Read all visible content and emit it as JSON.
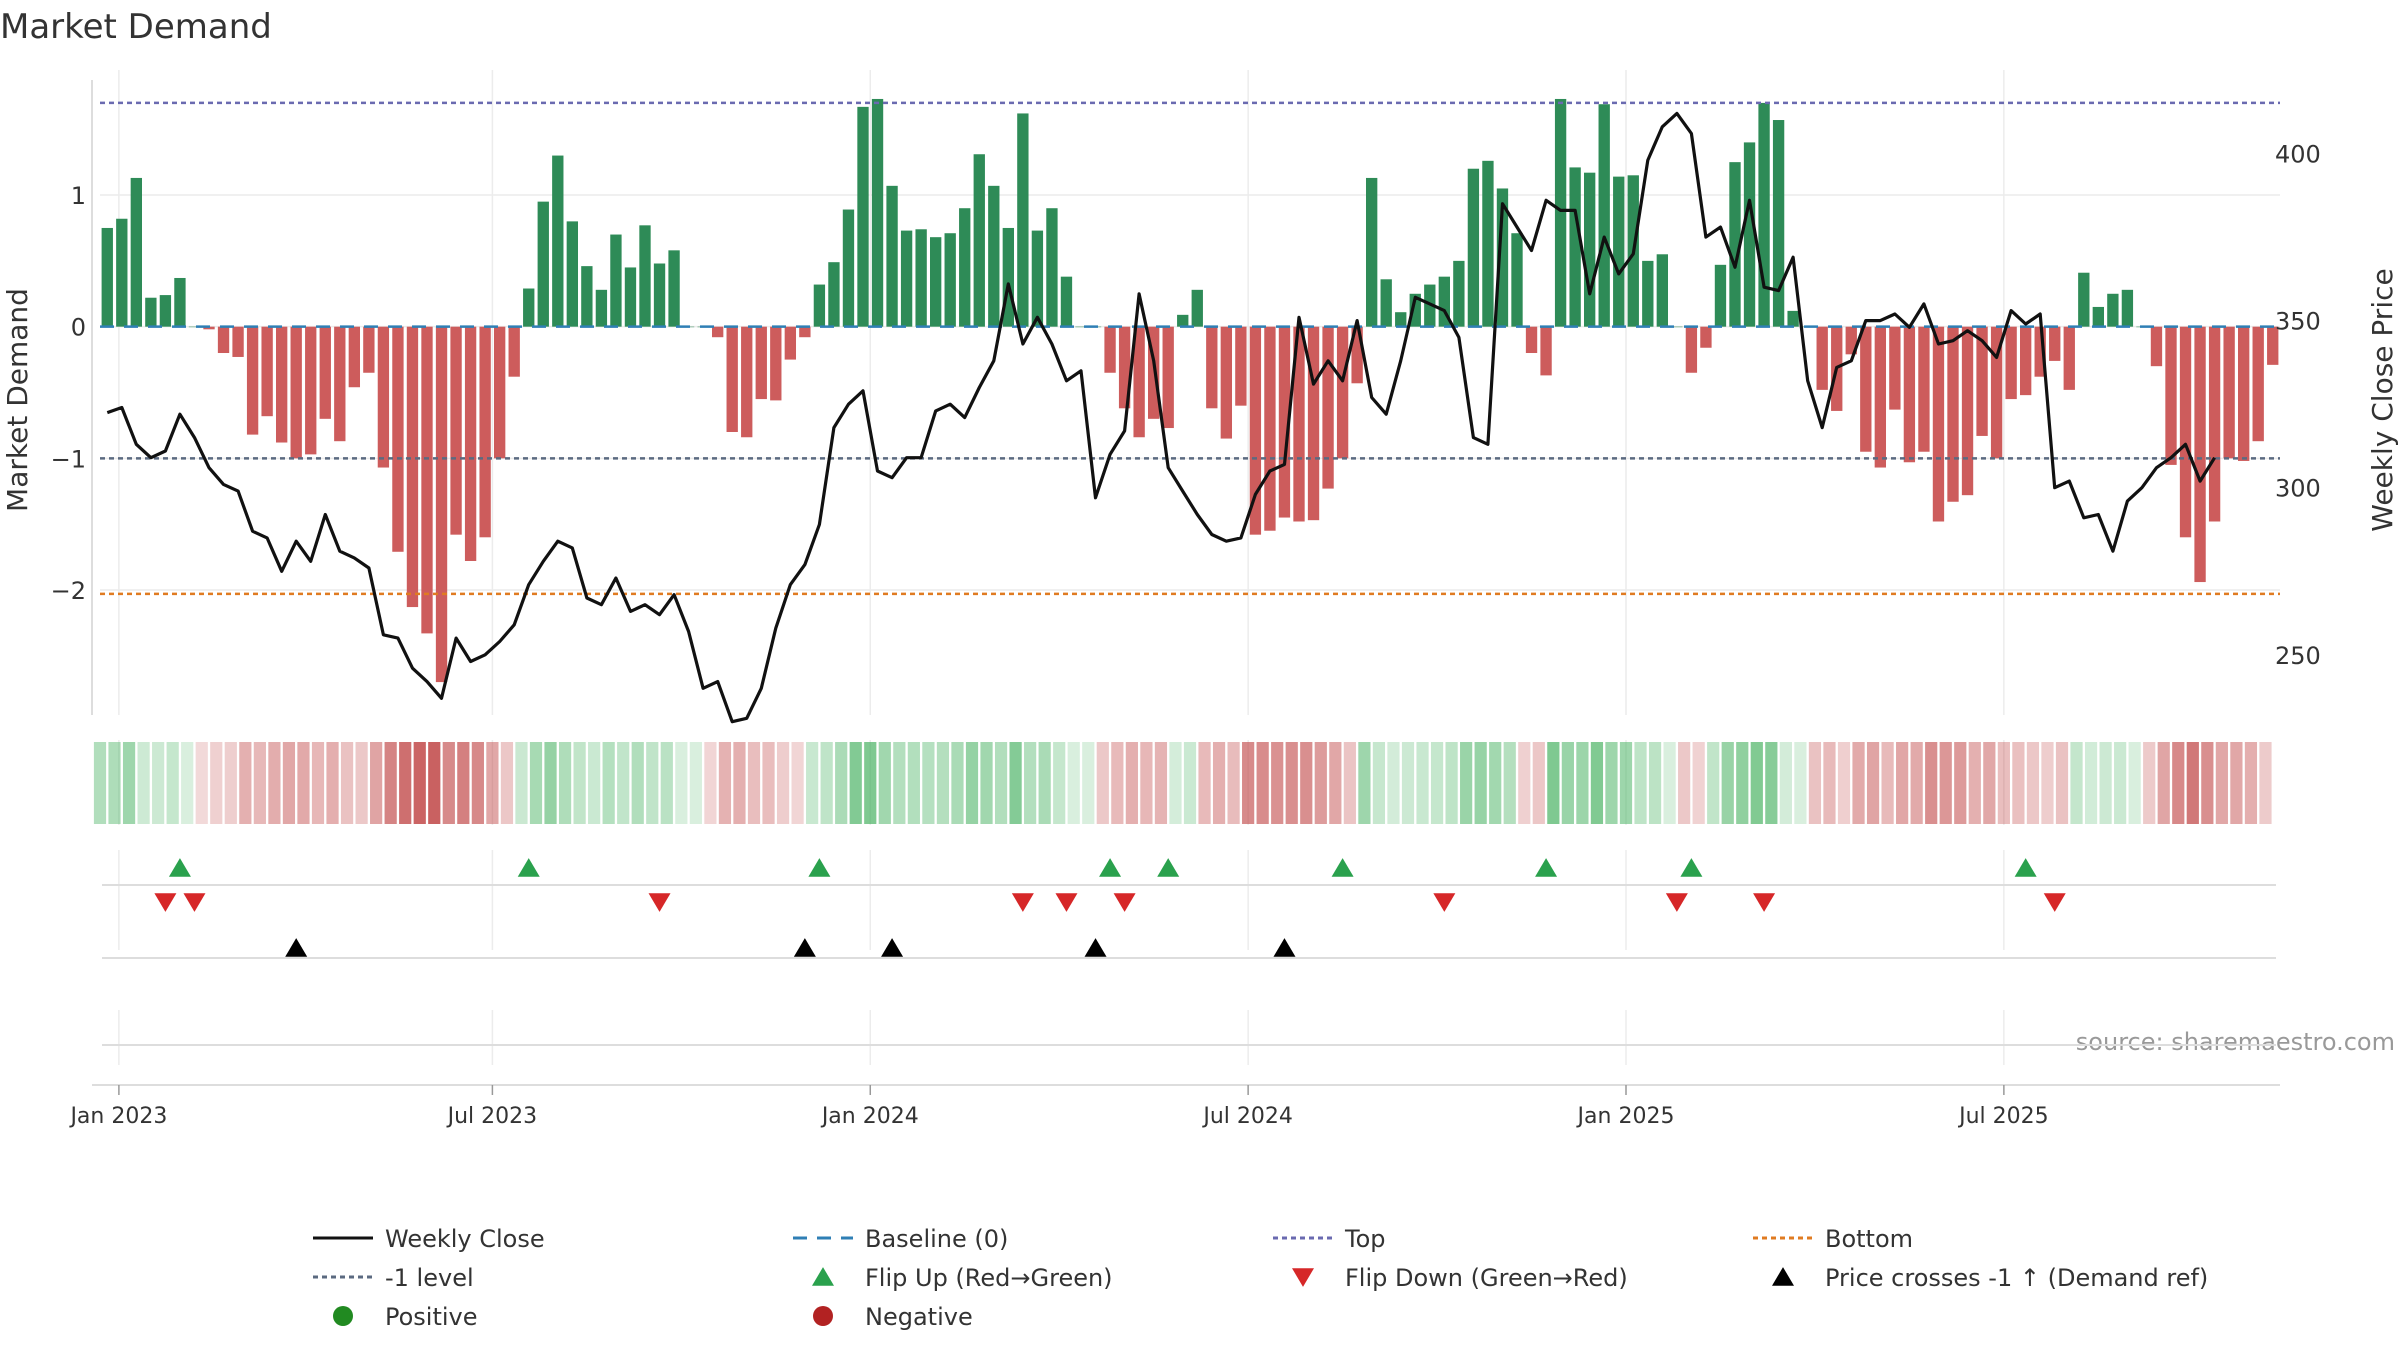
{
  "chart_data": {
    "type": "bar",
    "title": "Market Demand",
    "ylabel": "Market Demand",
    "y2label": "Weekly Close Price",
    "ylim": [
      -2.95,
      1.95
    ],
    "y_ticks": [
      1,
      0,
      -1,
      -2
    ],
    "y_tick_labels": [
      "1",
      "0",
      "−1",
      "−2"
    ],
    "y2lim": [
      232,
      425
    ],
    "y2_ticks": [
      400,
      350,
      300,
      250
    ],
    "y2_tick_labels": [
      "400",
      "350",
      "300",
      "250"
    ],
    "x_ticks": [
      {
        "label": "Jan 2023",
        "week": 0.8
      },
      {
        "label": "Jul 2023",
        "week": 26.5
      },
      {
        "label": "Jan 2024",
        "week": 52.5
      },
      {
        "label": "Jul 2024",
        "week": 78.5
      },
      {
        "label": "Jan 2025",
        "week": 104.5
      },
      {
        "label": "Jul 2025",
        "week": 130.5
      }
    ],
    "reference_lines": {
      "top": 1.7,
      "minus_one": -1.0,
      "bottom": -2.03,
      "baseline": 0
    },
    "demand": [
      0.75,
      0.82,
      1.13,
      0.22,
      0.24,
      0.37,
      0,
      -0.02,
      -0.2,
      -0.23,
      -0.82,
      -0.68,
      -0.88,
      -1.0,
      -0.97,
      -0.7,
      -0.87,
      -0.46,
      -0.35,
      -1.07,
      -1.71,
      -2.13,
      -2.33,
      -2.7,
      -1.58,
      -1.78,
      -1.6,
      -1.0,
      -0.38,
      0.29,
      0.95,
      1.3,
      0.8,
      0.46,
      0.28,
      0.7,
      0.45,
      0.77,
      0.48,
      0.58,
      0,
      0,
      -0.08,
      -0.8,
      -0.84,
      -0.55,
      -0.56,
      -0.25,
      -0.08,
      0.32,
      0.49,
      0.89,
      1.67,
      1.73,
      1.07,
      0.73,
      0.74,
      0.68,
      0.71,
      0.9,
      1.31,
      1.07,
      0.75,
      1.62,
      0.73,
      0.9,
      0.38,
      0,
      0,
      -0.35,
      -0.62,
      -0.84,
      -0.7,
      -0.77,
      0.09,
      0.28,
      -0.62,
      -0.85,
      -0.6,
      -1.58,
      -1.55,
      -1.45,
      -1.48,
      -1.47,
      -1.23,
      -1.0,
      -0.43,
      1.13,
      0.36,
      0.11,
      0.25,
      0.32,
      0.38,
      0.5,
      1.2,
      1.26,
      1.05,
      0.71,
      -0.2,
      -0.37,
      1.73,
      1.21,
      1.17,
      1.69,
      1.14,
      1.15,
      0.5,
      0.55,
      0,
      -0.35,
      -0.16,
      0.47,
      1.25,
      1.4,
      1.7,
      1.57,
      0.12,
      0,
      -0.48,
      -0.64,
      -0.21,
      -0.95,
      -1.07,
      -0.63,
      -1.03,
      -0.95,
      -1.48,
      -1.33,
      -1.28,
      -0.83,
      -1.0,
      -0.55,
      -0.52,
      -0.38,
      -0.26,
      -0.48,
      0.41,
      0.15,
      0.25,
      0.28,
      0,
      -0.3,
      -1.05,
      -1.6,
      -1.94,
      -1.48,
      -1.0,
      -1.02,
      -0.87,
      -0.29
    ],
    "series": [
      {
        "name": "Weekly Close",
        "values": [
          322.5,
          324,
          313,
          309,
          311,
          322,
          315,
          306,
          301,
          299,
          287,
          285,
          275,
          284,
          278,
          292,
          281,
          279,
          276,
          256,
          255,
          246,
          242,
          237,
          255,
          248,
          250,
          254,
          259,
          271,
          278,
          284,
          282,
          267,
          265,
          273,
          263,
          265,
          262,
          268,
          257,
          240,
          242,
          230,
          231,
          240,
          258,
          271,
          277,
          289,
          318,
          325,
          329,
          305,
          303,
          309,
          309,
          323,
          325,
          321,
          330,
          338,
          361,
          343,
          351,
          343,
          332,
          335,
          297,
          310,
          317,
          358,
          338,
          306,
          299,
          292,
          286,
          284,
          285,
          298,
          305,
          307,
          351,
          331,
          338,
          332,
          350,
          327,
          322,
          338,
          357,
          355,
          353,
          345,
          315,
          313,
          385,
          378,
          371,
          386,
          383,
          383,
          358,
          375,
          364,
          370,
          398,
          408,
          412,
          406,
          375,
          378,
          366,
          386,
          360,
          359,
          369,
          332,
          318,
          336,
          338,
          350,
          350,
          352,
          348,
          355,
          343,
          344,
          347,
          344,
          339,
          353,
          349,
          352,
          300,
          302,
          291,
          292,
          281,
          296,
          300,
          306,
          309,
          313,
          302,
          309
        ],
        "color": "#111111"
      }
    ],
    "flip_up_weeks": [
      5,
      29,
      49,
      69,
      73,
      85,
      99,
      109,
      132
    ],
    "flip_down_weeks": [
      4,
      6,
      38,
      63,
      66,
      70,
      92,
      108,
      114,
      134
    ],
    "price_cross_weeks": [
      13,
      48,
      54,
      68,
      81
    ],
    "legend": {
      "placement": "bottom",
      "entries": [
        {
          "label": "Weekly Close",
          "kind": "line",
          "color": "#111111",
          "dash": "solid"
        },
        {
          "label": "Baseline (0)",
          "kind": "line",
          "color": "#2f7fb5",
          "dash": "dashed"
        },
        {
          "label": "Top",
          "kind": "line",
          "color": "#6a6ab0",
          "dash": "dotted"
        },
        {
          "label": "Bottom",
          "kind": "line",
          "color": "#e07b21",
          "dash": "dotted"
        },
        {
          "label": "-1 level",
          "kind": "line",
          "color": "#5b6a80",
          "dash": "dotted"
        },
        {
          "label": "Flip Up (Red→Green)",
          "kind": "triangle-up",
          "color": "#2aa14d"
        },
        {
          "label": "Flip Down (Green→Red)",
          "kind": "triangle-down",
          "color": "#d62728"
        },
        {
          "label": "Price crosses -1 ↑ (Demand ref)",
          "kind": "triangle-up",
          "color": "#000000"
        },
        {
          "label": "Positive",
          "kind": "circle",
          "color": "#218a21"
        },
        {
          "label": "Negative",
          "kind": "circle",
          "color": "#b22222"
        }
      ]
    },
    "annotation": "source: sharemaestro.com",
    "colors": {
      "positive_bar": "#2e8b57",
      "negative_bar": "#cd5c5c",
      "top": "#6a6ab0",
      "bottom": "#e07b21",
      "minus_one": "#5b6a80",
      "baseline": "#2f7fb5",
      "flip_up": "#2aa14d",
      "flip_down": "#d62728",
      "price_cross": "#000000"
    }
  }
}
